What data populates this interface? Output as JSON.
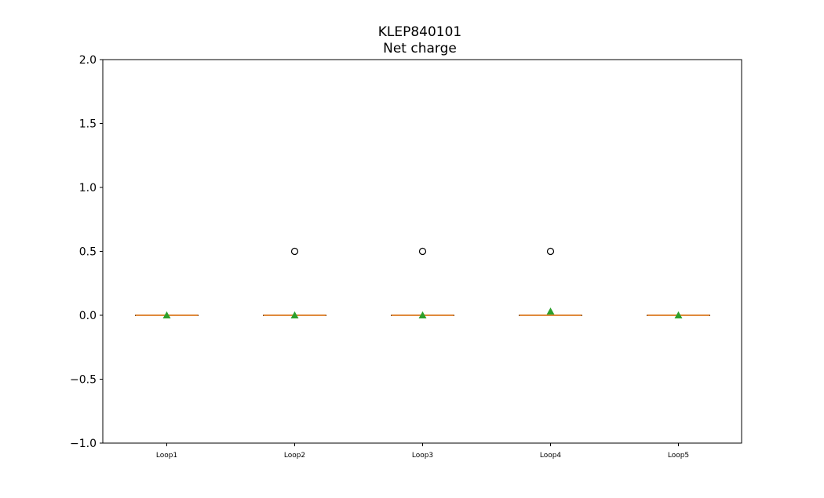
{
  "chart_data": {
    "type": "box",
    "title": "KLEP840101",
    "subtitle": "Net charge",
    "xlabel": "",
    "ylabel": "",
    "ylim": [
      -1.0,
      2.0
    ],
    "yticks": [
      -1.0,
      -0.5,
      0.0,
      0.5,
      1.0,
      1.5,
      2.0
    ],
    "ytick_labels": [
      "−1.0",
      "−0.5",
      "0.0",
      "0.5",
      "1.0",
      "1.5",
      "2.0"
    ],
    "categories": [
      "Loop1",
      "Loop2",
      "Loop3",
      "Loop4",
      "Loop5"
    ],
    "boxes": [
      {
        "label": "Loop1",
        "min": 0.0,
        "q1": 0.0,
        "median": 0.0,
        "q3": 0.0,
        "max": 0.0,
        "mean": 0.0,
        "outliers": []
      },
      {
        "label": "Loop2",
        "min": 0.0,
        "q1": 0.0,
        "median": 0.0,
        "q3": 0.0,
        "max": 0.0,
        "mean": 0.0,
        "outliers": [
          0.5
        ]
      },
      {
        "label": "Loop3",
        "min": 0.0,
        "q1": 0.0,
        "median": 0.0,
        "q3": 0.0,
        "max": 0.0,
        "mean": 0.0,
        "outliers": [
          0.5
        ]
      },
      {
        "label": "Loop4",
        "min": 0.0,
        "q1": 0.0,
        "median": 0.0,
        "q3": 0.0,
        "max": 0.0,
        "mean": 0.03,
        "outliers": [
          0.5
        ]
      },
      {
        "label": "Loop5",
        "min": 0.0,
        "q1": 0.0,
        "median": 0.0,
        "q3": 0.0,
        "max": 0.0,
        "mean": 0.0,
        "outliers": []
      }
    ],
    "grid": false,
    "colors": {
      "median": "#e08a3c",
      "mean": "#2ca02c",
      "box": "#000000",
      "outlier": "#000000"
    }
  }
}
